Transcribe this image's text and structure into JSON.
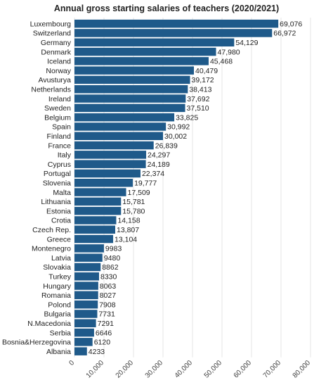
{
  "chart_data": {
    "type": "bar",
    "orientation": "horizontal",
    "title": "Annual gross starting salaries of teachers (2020/2021)",
    "xlabel": "",
    "ylabel": "",
    "xlim": [
      0,
      80000
    ],
    "ticks": [
      0,
      10000,
      20000,
      30000,
      40000,
      50000,
      60000,
      70000,
      80000
    ],
    "tick_labels": [
      "0",
      "10,000",
      "20,000",
      "30,000",
      "40,000",
      "50,000",
      "60,000",
      "70,000",
      "80,000"
    ],
    "grid": true,
    "bar_color": "#1f5a8a",
    "categories": [
      "Luxembourg",
      "Switzerland",
      "Germany",
      "Denmark",
      "Iceland",
      "Norway",
      "Avusturya",
      "Netherlands",
      "Ireland",
      "Sweden",
      "Belgium",
      "Spain",
      "Finland",
      "France",
      "Italy",
      "Cyprus",
      "Portugal",
      "Slovenia",
      "Malta",
      "Lithuania",
      "Estonia",
      "Crotia",
      "Czech Rep.",
      "Greece",
      "Montenegro",
      "Latvia",
      "Slovakia",
      "Turkey",
      "Hungary",
      "Romania",
      "Polond",
      "Bulgaria",
      "N.Macedonia",
      "Serbia",
      "Bosnia&Herzegovina",
      "Albania"
    ],
    "values": [
      69076,
      66972,
      54129,
      47980,
      45468,
      40479,
      39172,
      38413,
      37692,
      37510,
      33825,
      30992,
      30002,
      26839,
      24297,
      24189,
      22374,
      19777,
      17509,
      15781,
      15780,
      14158,
      13807,
      13104,
      9983,
      9480,
      8862,
      8330,
      8063,
      8027,
      7908,
      7731,
      7291,
      6646,
      6120,
      4233
    ],
    "value_labels": [
      "69,076",
      "66,972",
      "54,129",
      "47,980",
      "45,468",
      "40,479",
      "39,172",
      "38,413",
      "37,692",
      "37,510",
      "33,825",
      "30,992",
      "30,002",
      "26,839",
      "24,297",
      "24,189",
      "22,374",
      "19,777",
      "17,509",
      "15,781",
      "15,780",
      "14,158",
      "13,807",
      "13,104",
      "9983",
      "9480",
      "8862",
      "8330",
      "8063",
      "8027",
      "7908",
      "7731",
      "7291",
      "6646",
      "6120",
      "4233"
    ]
  }
}
